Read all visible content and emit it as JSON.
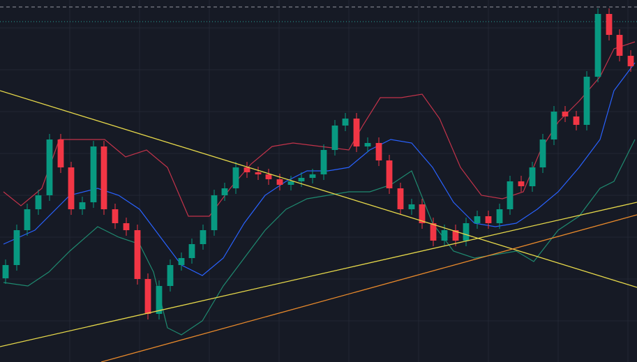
{
  "chart_data": {
    "type": "candlestick",
    "background": "#161a25",
    "xlim": [
      0,
      913
    ],
    "ylim": [
      0,
      519
    ],
    "xticks": [
      100,
      200,
      300,
      400,
      500,
      600,
      700,
      800,
      900
    ],
    "yticks": [
      59,
      119,
      179,
      239,
      299,
      359,
      419,
      479
    ],
    "grid": true,
    "up_color": "#089981",
    "down_color": "#f23645",
    "x": [
      8,
      24,
      39,
      55,
      71,
      87,
      102,
      118,
      134,
      149,
      165,
      181,
      197,
      212,
      228,
      244,
      260,
      275,
      291,
      307,
      322,
      338,
      354,
      370,
      385,
      401,
      417,
      432,
      448,
      464,
      480,
      495,
      511,
      527,
      543,
      558,
      574,
      590,
      605,
      621,
      637,
      653,
      668,
      684,
      700,
      716,
      731,
      747,
      763,
      778,
      794,
      810,
      826,
      841,
      857,
      873,
      888,
      904
    ],
    "open": [
      120,
      139,
      189,
      219,
      239,
      319,
      279,
      219,
      229,
      309,
      219,
      199,
      189,
      119,
      69,
      109,
      139,
      149,
      169,
      189,
      239,
      249,
      279,
      272,
      269,
      262,
      254,
      259,
      264,
      269,
      304,
      339,
      349,
      309,
      314,
      289,
      249,
      219,
      226,
      199,
      174,
      189,
      174,
      199,
      209,
      199,
      219,
      259,
      252,
      279,
      319,
      359,
      352,
      340,
      409,
      499,
      469,
      439
    ],
    "high": [
      147,
      197,
      227,
      247,
      327,
      327,
      287,
      237,
      317,
      317,
      227,
      207,
      197,
      127,
      117,
      147,
      157,
      177,
      197,
      247,
      257,
      287,
      287,
      280,
      277,
      270,
      267,
      272,
      277,
      312,
      347,
      357,
      357,
      322,
      322,
      297,
      257,
      234,
      234,
      207,
      197,
      197,
      207,
      217,
      217,
      227,
      267,
      267,
      287,
      327,
      367,
      367,
      360,
      417,
      507,
      507,
      477,
      447
    ],
    "low": [
      112,
      131,
      181,
      211,
      231,
      271,
      211,
      211,
      221,
      211,
      191,
      181,
      111,
      61,
      61,
      101,
      131,
      141,
      161,
      181,
      231,
      241,
      264,
      261,
      254,
      246,
      246,
      251,
      256,
      261,
      296,
      331,
      301,
      301,
      281,
      241,
      211,
      211,
      191,
      166,
      166,
      166,
      166,
      191,
      191,
      191,
      211,
      244,
      244,
      271,
      311,
      344,
      332,
      332,
      401,
      461,
      431,
      416
    ],
    "close": [
      139,
      189,
      219,
      239,
      319,
      279,
      219,
      229,
      309,
      219,
      199,
      189,
      119,
      69,
      109,
      139,
      149,
      169,
      189,
      239,
      249,
      279,
      272,
      269,
      262,
      254,
      259,
      264,
      269,
      304,
      339,
      349,
      309,
      314,
      289,
      249,
      219,
      226,
      199,
      174,
      189,
      174,
      199,
      209,
      199,
      219,
      259,
      252,
      279,
      319,
      359,
      352,
      340,
      409,
      499,
      469,
      439,
      424
    ],
    "bands": [
      {
        "color": "#c2334a",
        "x": [
          5,
          30,
          60,
          85,
          110,
          150,
          180,
          210,
          240,
          270,
          300,
          330,
          360,
          390,
          420,
          460,
          500,
          520,
          545,
          575,
          605,
          630,
          660,
          690,
          720,
          750,
          775,
          800,
          830,
          860,
          880,
          910
        ],
        "values": [
          244,
          224,
          249,
          319,
          319,
          319,
          294,
          304,
          279,
          209,
          209,
          249,
          284,
          309,
          314,
          309,
          304,
          339,
          379,
          379,
          384,
          349,
          279,
          239,
          234,
          244,
          304,
          344,
          374,
          409,
          449,
          459
        ]
      },
      {
        "color": "#2962ff",
        "x": [
          5,
          50,
          100,
          140,
          170,
          200,
          230,
          260,
          290,
          320,
          350,
          380,
          410,
          440,
          470,
          500,
          530,
          560,
          590,
          620,
          650,
          680,
          710,
          740,
          770,
          800,
          830,
          860,
          880,
          910
        ],
        "values": [
          169,
          189,
          239,
          249,
          239,
          219,
          179,
          139,
          124,
          149,
          199,
          239,
          259,
          274,
          274,
          279,
          304,
          319,
          314,
          279,
          229,
          199,
          194,
          199,
          219,
          244,
          279,
          319,
          389,
          429
        ]
      },
      {
        "color": "#1f8a70",
        "x": [
          5,
          40,
          70,
          100,
          140,
          170,
          200,
          220,
          240,
          260,
          290,
          320,
          350,
          380,
          410,
          440,
          470,
          500,
          530,
          560,
          590,
          620,
          650,
          680,
          710,
          740,
          765,
          800,
          830,
          860,
          880,
          910
        ],
        "values": [
          114,
          109,
          129,
          159,
          194,
          179,
          169,
          129,
          49,
          39,
          59,
          109,
          149,
          189,
          219,
          234,
          239,
          244,
          244,
          254,
          274,
          199,
          159,
          149,
          154,
          159,
          144,
          189,
          209,
          249,
          259,
          319
        ]
      }
    ],
    "trendlines": [
      {
        "color": "#e6d84a",
        "x": [
          0,
          913
        ],
        "values": [
          389,
          107
        ]
      },
      {
        "color": "#e6d84a",
        "x": [
          0,
          913
        ],
        "values": [
          22,
          229
        ]
      },
      {
        "color": "#e8892b",
        "x": [
          145,
          913
        ],
        "values": [
          0,
          211
        ]
      }
    ],
    "levels": [
      {
        "value": 509,
        "color": "#9598a1",
        "style": "dashed"
      },
      {
        "value": 488,
        "color": "#26a69a",
        "style": "dotted"
      }
    ]
  }
}
